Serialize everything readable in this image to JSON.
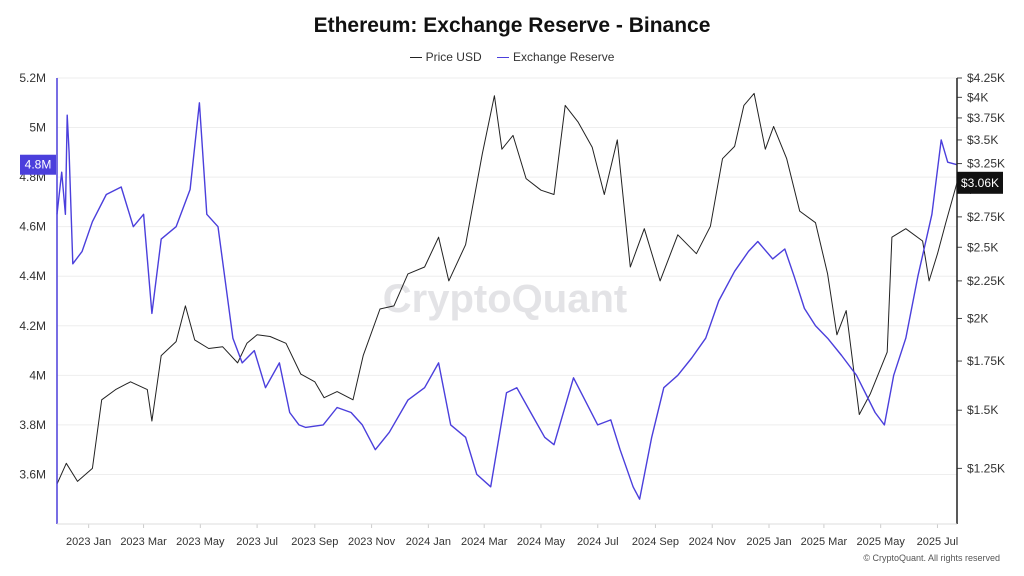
{
  "chart_data": {
    "type": "line",
    "title": "Ethereum: Exchange Reserve - Binance",
    "x_ticks": [
      "2023 Jan",
      "2023 Mar",
      "2023 May",
      "2023 Jul",
      "2023 Sep",
      "2023 Nov",
      "2024 Jan",
      "2024 Mar",
      "2024 May",
      "2024 Jul",
      "2024 Sep",
      "2024 Nov",
      "2025 Jan",
      "2025 Mar",
      "2025 May",
      "2025 Jul"
    ],
    "x_range": [
      "2022-11-28",
      "2025-07-22"
    ],
    "left_axis": {
      "ticks": [
        3600000,
        3800000,
        4000000,
        4200000,
        4400000,
        4600000,
        4800000,
        5000000,
        5200000
      ],
      "tick_labels": [
        "3.6M",
        "3.8M",
        "4M",
        "4.2M",
        "4.4M",
        "4.6M",
        "4.8M",
        "5M",
        "5.2M"
      ],
      "ylim": [
        3400000,
        5200000
      ]
    },
    "right_axis": {
      "scale": "log",
      "ticks": [
        1250,
        1500,
        1750,
        2000,
        2250,
        2500,
        2750,
        3000,
        3250,
        3500,
        3750,
        4000,
        4250
      ],
      "tick_labels": [
        "$1.25K",
        "$1.5K",
        "$1.75K",
        "$2K",
        "$2.25K",
        "$2.5K",
        "$2.75K",
        "$3K",
        "$3.25K",
        "$3.5K",
        "$3.75K",
        "$4K",
        "$4.25K"
      ],
      "ylim": [
        1050,
        4250
      ]
    },
    "current_reserve_label": "4.8M",
    "current_price_label": "$3.06K",
    "series": [
      {
        "name": "Price USD",
        "axis": "right",
        "color": "#222222",
        "points": [
          [
            "2022-11-28",
            1190
          ],
          [
            "2022-12-08",
            1270
          ],
          [
            "2022-12-20",
            1200
          ],
          [
            "2023-01-05",
            1250
          ],
          [
            "2023-01-15",
            1550
          ],
          [
            "2023-01-30",
            1600
          ],
          [
            "2023-02-15",
            1640
          ],
          [
            "2023-03-05",
            1600
          ],
          [
            "2023-03-10",
            1450
          ],
          [
            "2023-03-20",
            1780
          ],
          [
            "2023-04-05",
            1860
          ],
          [
            "2023-04-15",
            2080
          ],
          [
            "2023-04-25",
            1870
          ],
          [
            "2023-05-10",
            1820
          ],
          [
            "2023-05-25",
            1830
          ],
          [
            "2023-06-10",
            1740
          ],
          [
            "2023-06-20",
            1850
          ],
          [
            "2023-07-01",
            1900
          ],
          [
            "2023-07-15",
            1890
          ],
          [
            "2023-08-01",
            1850
          ],
          [
            "2023-08-17",
            1680
          ],
          [
            "2023-09-01",
            1640
          ],
          [
            "2023-09-11",
            1560
          ],
          [
            "2023-09-25",
            1590
          ],
          [
            "2023-10-12",
            1550
          ],
          [
            "2023-10-23",
            1780
          ],
          [
            "2023-11-10",
            2060
          ],
          [
            "2023-11-25",
            2080
          ],
          [
            "2023-12-10",
            2300
          ],
          [
            "2023-12-28",
            2350
          ],
          [
            "2024-01-12",
            2580
          ],
          [
            "2024-01-23",
            2250
          ],
          [
            "2024-02-10",
            2520
          ],
          [
            "2024-02-28",
            3350
          ],
          [
            "2024-03-12",
            4020
          ],
          [
            "2024-03-20",
            3400
          ],
          [
            "2024-04-01",
            3550
          ],
          [
            "2024-04-15",
            3100
          ],
          [
            "2024-05-01",
            2990
          ],
          [
            "2024-05-15",
            2950
          ],
          [
            "2024-05-27",
            3900
          ],
          [
            "2024-06-10",
            3700
          ],
          [
            "2024-06-25",
            3420
          ],
          [
            "2024-07-08",
            2950
          ],
          [
            "2024-07-22",
            3500
          ],
          [
            "2024-08-05",
            2350
          ],
          [
            "2024-08-20",
            2650
          ],
          [
            "2024-09-06",
            2250
          ],
          [
            "2024-09-25",
            2600
          ],
          [
            "2024-10-15",
            2450
          ],
          [
            "2024-10-30",
            2670
          ],
          [
            "2024-11-12",
            3300
          ],
          [
            "2024-11-25",
            3430
          ],
          [
            "2024-12-05",
            3900
          ],
          [
            "2024-12-16",
            4050
          ],
          [
            "2024-12-28",
            3400
          ],
          [
            "2025-01-06",
            3650
          ],
          [
            "2025-01-20",
            3300
          ],
          [
            "2025-02-03",
            2800
          ],
          [
            "2025-02-20",
            2700
          ],
          [
            "2025-03-05",
            2300
          ],
          [
            "2025-03-15",
            1900
          ],
          [
            "2025-03-25",
            2050
          ],
          [
            "2025-04-08",
            1480
          ],
          [
            "2025-04-20",
            1580
          ],
          [
            "2025-05-08",
            1800
          ],
          [
            "2025-05-13",
            2580
          ],
          [
            "2025-05-28",
            2650
          ],
          [
            "2025-06-15",
            2550
          ],
          [
            "2025-06-22",
            2250
          ],
          [
            "2025-07-01",
            2450
          ],
          [
            "2025-07-10",
            2700
          ],
          [
            "2025-07-22",
            3060
          ]
        ]
      },
      {
        "name": "Exchange Reserve",
        "axis": "left",
        "color": "#4b3fdc",
        "points": [
          [
            "2022-11-28",
            4650
          ],
          [
            "2022-12-03",
            4820
          ],
          [
            "2022-12-07",
            4650
          ],
          [
            "2022-12-09",
            5050
          ],
          [
            "2022-12-11",
            4900
          ],
          [
            "2022-12-15",
            4450
          ],
          [
            "2022-12-25",
            4500
          ],
          [
            "2023-01-05",
            4620
          ],
          [
            "2023-01-20",
            4730
          ],
          [
            "2023-02-05",
            4760
          ],
          [
            "2023-02-18",
            4600
          ],
          [
            "2023-03-01",
            4650
          ],
          [
            "2023-03-10",
            4250
          ],
          [
            "2023-03-20",
            4550
          ],
          [
            "2023-04-05",
            4600
          ],
          [
            "2023-04-20",
            4750
          ],
          [
            "2023-04-30",
            5100
          ],
          [
            "2023-05-08",
            4650
          ],
          [
            "2023-05-20",
            4600
          ],
          [
            "2023-06-05",
            4150
          ],
          [
            "2023-06-15",
            4050
          ],
          [
            "2023-06-28",
            4100
          ],
          [
            "2023-07-10",
            3950
          ],
          [
            "2023-07-25",
            4050
          ],
          [
            "2023-08-05",
            3850
          ],
          [
            "2023-08-15",
            3800
          ],
          [
            "2023-08-22",
            3790
          ],
          [
            "2023-09-10",
            3800
          ],
          [
            "2023-09-25",
            3870
          ],
          [
            "2023-10-10",
            3850
          ],
          [
            "2023-10-22",
            3800
          ],
          [
            "2023-11-05",
            3700
          ],
          [
            "2023-11-20",
            3770
          ],
          [
            "2023-12-10",
            3900
          ],
          [
            "2023-12-28",
            3950
          ],
          [
            "2024-01-12",
            4050
          ],
          [
            "2024-01-25",
            3800
          ],
          [
            "2024-02-10",
            3750
          ],
          [
            "2024-02-22",
            3600
          ],
          [
            "2024-03-08",
            3550
          ],
          [
            "2024-03-25",
            3930
          ],
          [
            "2024-04-05",
            3950
          ],
          [
            "2024-04-20",
            3850
          ],
          [
            "2024-05-05",
            3750
          ],
          [
            "2024-05-15",
            3720
          ],
          [
            "2024-06-05",
            3990
          ],
          [
            "2024-06-20",
            3880
          ],
          [
            "2024-07-01",
            3800
          ],
          [
            "2024-07-15",
            3820
          ],
          [
            "2024-07-25",
            3700
          ],
          [
            "2024-08-08",
            3550
          ],
          [
            "2024-08-15",
            3500
          ],
          [
            "2024-08-28",
            3750
          ],
          [
            "2024-09-10",
            3950
          ],
          [
            "2024-09-25",
            4000
          ],
          [
            "2024-10-10",
            4070
          ],
          [
            "2024-10-25",
            4150
          ],
          [
            "2024-11-08",
            4300
          ],
          [
            "2024-11-25",
            4420
          ],
          [
            "2024-12-10",
            4500
          ],
          [
            "2024-12-20",
            4540
          ],
          [
            "2025-01-05",
            4470
          ],
          [
            "2025-01-18",
            4510
          ],
          [
            "2025-01-28",
            4400
          ],
          [
            "2025-02-08",
            4270
          ],
          [
            "2025-02-20",
            4200
          ],
          [
            "2025-03-05",
            4150
          ],
          [
            "2025-03-20",
            4080
          ],
          [
            "2025-04-05",
            4000
          ],
          [
            "2025-04-25",
            3850
          ],
          [
            "2025-05-05",
            3800
          ],
          [
            "2025-05-15",
            4000
          ],
          [
            "2025-05-28",
            4150
          ],
          [
            "2025-06-10",
            4400
          ],
          [
            "2025-06-25",
            4650
          ],
          [
            "2025-07-05",
            4950
          ],
          [
            "2025-07-12",
            4860
          ],
          [
            "2025-07-22",
            4850
          ]
        ]
      }
    ]
  },
  "watermark": "CryptoQuant",
  "footer": "© CryptoQuant. All rights reserved",
  "colors": {
    "reserve": "#4b3fdc",
    "price": "#222222",
    "grid": "#eeeeee",
    "axis_text": "#333333"
  }
}
